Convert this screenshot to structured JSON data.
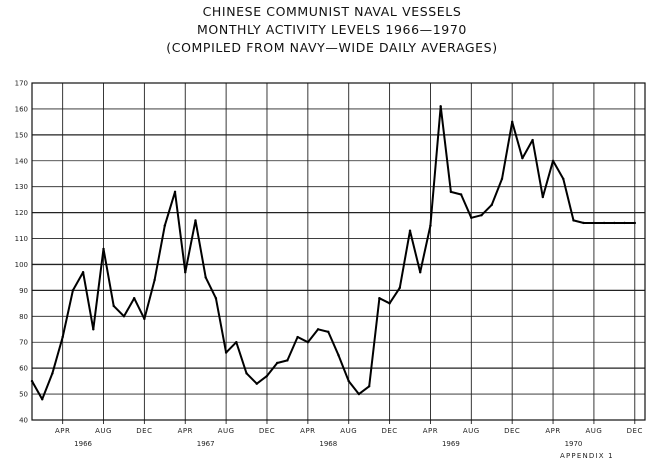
{
  "title_lines": [
    "CHINESE COMMUNIST NAVAL VESSELS",
    "MONTHLY ACTIVITY LEVELS 1966—1970",
    "(COMPILED FROM NAVY—WIDE DAILY AVERAGES)"
  ],
  "appendix_label": "APPENDIX 1",
  "chart_data": {
    "type": "line",
    "title": "CHINESE COMMUNIST NAVAL VESSELS MONTHLY ACTIVITY LEVELS 1966—1970 (COMPILED FROM NAVY—WIDE DAILY AVERAGES)",
    "xlabel": "",
    "ylabel": "",
    "ylim": [
      40,
      170
    ],
    "xlim": [
      0,
      60
    ],
    "y_ticks": [
      40,
      50,
      60,
      70,
      80,
      90,
      100,
      110,
      120,
      130,
      140,
      150,
      160,
      170
    ],
    "y_tick_labels": [
      "40",
      "50",
      "60",
      "70",
      "80",
      "90",
      "100",
      "110",
      "120",
      "130",
      "140",
      "150",
      "160",
      "170"
    ],
    "x_ticks": [
      {
        "month": 3,
        "label": "APR"
      },
      {
        "month": 7,
        "label": "AUG"
      },
      {
        "month": 11,
        "label": "DEC"
      },
      {
        "month": 15,
        "label": "APR"
      },
      {
        "month": 19,
        "label": "AUG"
      },
      {
        "month": 23,
        "label": "DEC"
      },
      {
        "month": 27,
        "label": "APR"
      },
      {
        "month": 31,
        "label": "AUG"
      },
      {
        "month": 35,
        "label": "DEC"
      },
      {
        "month": 39,
        "label": "APR"
      },
      {
        "month": 43,
        "label": "AUG"
      },
      {
        "month": 47,
        "label": "DEC"
      },
      {
        "month": 51,
        "label": "APR"
      },
      {
        "month": 55,
        "label": "AUG"
      },
      {
        "month": 59,
        "label": "DEC"
      }
    ],
    "year_labels": [
      {
        "month": 5,
        "label": "1966"
      },
      {
        "month": 17,
        "label": "1967"
      },
      {
        "month": 29,
        "label": "1968"
      },
      {
        "month": 41,
        "label": "1969"
      },
      {
        "month": 53,
        "label": "1970"
      }
    ],
    "grid": true,
    "legend": "none",
    "series": [
      {
        "x": [
          0,
          1,
          2,
          3,
          4,
          5,
          6,
          7,
          8,
          9,
          10,
          11,
          12,
          13,
          14,
          15,
          16,
          17,
          18,
          19,
          20,
          21,
          22,
          23,
          24,
          25,
          26,
          27,
          28,
          29,
          30,
          31,
          32,
          33,
          34,
          35,
          36,
          37,
          38,
          39,
          40,
          41,
          42,
          43,
          44,
          45,
          46,
          47,
          48,
          49,
          50,
          51,
          52,
          53,
          54,
          55,
          56,
          57,
          58,
          59
        ],
        "values": [
          55,
          48,
          58,
          72,
          90,
          97,
          75,
          106,
          84,
          80,
          87,
          79,
          94,
          115,
          128,
          97,
          117,
          95,
          87,
          66,
          70,
          58,
          54,
          57,
          62,
          63,
          72,
          70,
          75,
          74,
          65,
          55,
          50,
          53,
          87,
          85,
          91,
          113,
          97,
          115,
          161,
          128,
          127,
          118,
          119,
          123,
          133,
          155,
          141,
          148,
          126,
          140,
          133,
          117,
          116,
          116,
          116,
          116,
          116,
          116
        ]
      }
    ]
  }
}
